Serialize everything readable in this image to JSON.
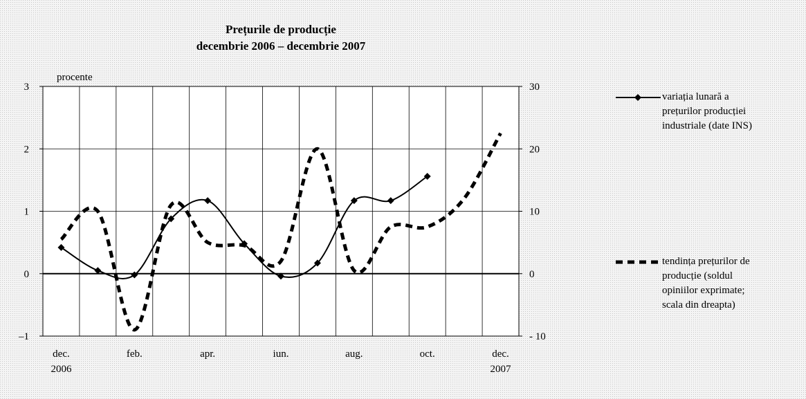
{
  "chart_data": {
    "type": "line",
    "title": "Prețurile de producție",
    "subtitle": "decembrie 2006 – decembrie 2007",
    "y_label": "procente",
    "categories": [
      "dec. 2006",
      null,
      "feb.",
      null,
      "apr.",
      null,
      "iun.",
      null,
      "aug.",
      null,
      "oct.",
      null,
      "dec. 2007"
    ],
    "series": [
      {
        "name": "variația lunară a prețurilor producției industriale (date INS)",
        "color": "#000000",
        "style": "solid",
        "marker": "diamond",
        "values": [
          0.42,
          0.05,
          -0.02,
          0.88,
          1.17,
          0.48,
          -0.04,
          0.17,
          1.17,
          1.17,
          1.56,
          null,
          null
        ]
      },
      {
        "name": "tendința prețurilor de producție (soldul opiniilor exprimate; scala din dreapta)",
        "color": "#000000",
        "style": "dashed",
        "axis": "y2",
        "values": [
          5.5,
          10,
          -9,
          11,
          5,
          4.5,
          2,
          20,
          0.5,
          7.5,
          7.5,
          12,
          22.5
        ]
      }
    ],
    "ylim": [
      -1,
      3
    ],
    "yticks": [
      {
        "value": -1,
        "label": "–1"
      },
      0,
      1,
      2,
      3
    ],
    "y2lim": [
      -10,
      30
    ],
    "y2ticks": [
      {
        "value": -10,
        "label": "- 10"
      },
      0,
      10,
      20,
      30
    ],
    "grid": true
  }
}
